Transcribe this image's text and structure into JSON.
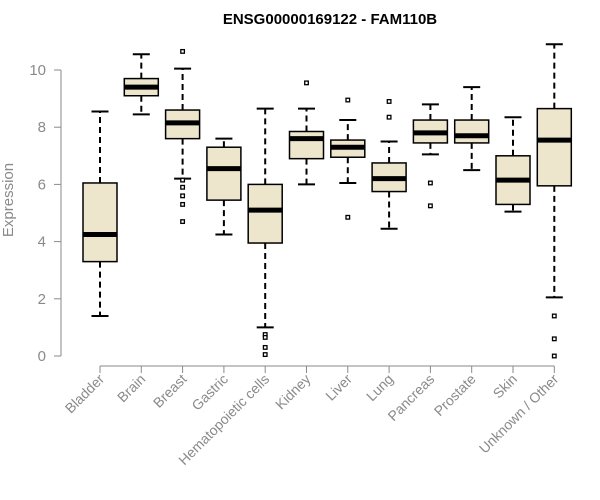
{
  "chart_data": {
    "type": "boxplot",
    "title": "ENSG00000169122 - FAM110B",
    "xlabel": "",
    "ylabel": "Expression",
    "ylim": [
      0,
      10
    ],
    "yticks": [
      0,
      2,
      4,
      6,
      8,
      10
    ],
    "grid": false,
    "legend": "none",
    "colors": {
      "box_fill": "#ede6cc",
      "box_stroke": "#000000",
      "axis": "#8a8a8a",
      "text": "#8a8a8a",
      "title": "#000000"
    },
    "categories": [
      "Bladder",
      "Brain",
      "Breast",
      "Gastric",
      "Hematopoietic cells",
      "Kidney",
      "Liver",
      "Lung",
      "Pancreas",
      "Prostate",
      "Skin",
      "Unknown / Other"
    ],
    "boxes": [
      {
        "category": "Bladder",
        "whisker_low": 1.4,
        "q1": 3.3,
        "median": 4.25,
        "q3": 6.05,
        "whisker_high": 8.55,
        "outliers": []
      },
      {
        "category": "Brain",
        "whisker_low": 8.45,
        "q1": 9.1,
        "median": 9.4,
        "q3": 9.7,
        "whisker_high": 10.55,
        "outliers": []
      },
      {
        "category": "Breast",
        "whisker_low": 6.2,
        "q1": 7.6,
        "median": 8.15,
        "q3": 8.6,
        "whisker_high": 10.05,
        "outliers": [
          10.65,
          6.15,
          5.9,
          5.6,
          5.3,
          4.7
        ]
      },
      {
        "category": "Gastric",
        "whisker_low": 4.25,
        "q1": 5.45,
        "median": 6.55,
        "q3": 7.3,
        "whisker_high": 7.6,
        "outliers": []
      },
      {
        "category": "Hematopoietic cells",
        "whisker_low": 1.0,
        "q1": 3.95,
        "median": 5.1,
        "q3": 6.0,
        "whisker_high": 8.65,
        "outliers": [
          0.75,
          0.65,
          0.3,
          0.05
        ]
      },
      {
        "category": "Kidney",
        "whisker_low": 6.0,
        "q1": 6.9,
        "median": 7.6,
        "q3": 7.85,
        "whisker_high": 8.65,
        "outliers": [
          9.55
        ]
      },
      {
        "category": "Liver",
        "whisker_low": 6.05,
        "q1": 6.95,
        "median": 7.3,
        "q3": 7.55,
        "whisker_high": 8.25,
        "outliers": [
          8.95,
          4.85
        ]
      },
      {
        "category": "Lung",
        "whisker_low": 4.45,
        "q1": 5.75,
        "median": 6.2,
        "q3": 6.75,
        "whisker_high": 7.5,
        "outliers": [
          8.9,
          8.35
        ]
      },
      {
        "category": "Pancreas",
        "whisker_low": 7.05,
        "q1": 7.45,
        "median": 7.8,
        "q3": 8.25,
        "whisker_high": 8.8,
        "outliers": [
          6.05,
          5.25
        ]
      },
      {
        "category": "Prostate",
        "whisker_low": 6.5,
        "q1": 7.45,
        "median": 7.7,
        "q3": 8.25,
        "whisker_high": 9.4,
        "outliers": []
      },
      {
        "category": "Skin",
        "whisker_low": 5.05,
        "q1": 5.3,
        "median": 6.15,
        "q3": 7.0,
        "whisker_high": 8.35,
        "outliers": []
      },
      {
        "category": "Unknown / Other",
        "whisker_low": 2.05,
        "q1": 5.95,
        "median": 7.55,
        "q3": 8.65,
        "whisker_high": 10.9,
        "outliers": [
          1.4,
          0.6,
          0.0
        ]
      }
    ]
  }
}
